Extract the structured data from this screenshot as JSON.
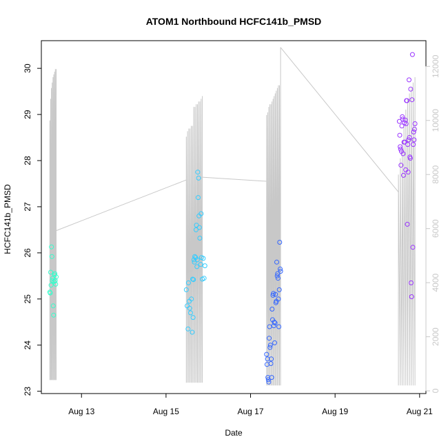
{
  "chart_data": {
    "type": "scatter",
    "title": "ATOM1 Northbound HCFC141b_PMSD",
    "xlabel": "Date",
    "ylabel": "HCFC141b_PMSD",
    "x_ticks": [
      {
        "value": 13,
        "label": "Aug 13"
      },
      {
        "value": 15,
        "label": "Aug 15"
      },
      {
        "value": 17,
        "label": "Aug 17"
      },
      {
        "value": 19,
        "label": "Aug 19"
      },
      {
        "value": 21,
        "label": "Aug 21"
      }
    ],
    "xlim": [
      12.05,
      21.15
    ],
    "ylim": [
      22.95,
      30.6
    ],
    "y_ticks": [
      23,
      24,
      25,
      26,
      27,
      28,
      29,
      30
    ],
    "y2lim": [
      -100,
      12950
    ],
    "y2_ticks": [
      0,
      2000,
      4000,
      6000,
      8000,
      10000,
      12000
    ],
    "colors": {
      "axis": "#000000",
      "secondary_line": "#c8c8c8",
      "secondary_axis": "#c8c8c8"
    },
    "series": [
      {
        "color": "#33ffcc",
        "x": [
          12.25,
          12.26,
          12.27,
          12.28,
          12.29,
          12.3,
          12.31,
          12.32,
          12.33,
          12.34,
          12.35,
          12.36,
          12.37,
          12.38,
          12.39,
          12.4
        ],
        "y": [
          25.15,
          25.13,
          25.58,
          25.3,
          26.13,
          25.92,
          25.4,
          25.45,
          24.85,
          24.65,
          25.38,
          25.52,
          25.55,
          25.4,
          25.32,
          25.48
        ]
      },
      {
        "color": "#33ccff",
        "x": [
          15.48,
          15.5,
          15.52,
          15.53,
          15.55,
          15.56,
          15.58,
          15.6,
          15.62,
          15.63,
          15.64,
          15.65,
          15.66,
          15.67,
          15.68,
          15.7,
          15.71,
          15.72,
          15.73,
          15.74,
          15.75,
          15.76,
          15.77,
          15.78,
          15.79,
          15.8,
          15.82
        ],
        "y": [
          25.2,
          24.85,
          24.35,
          25.35,
          24.95,
          24.8,
          24.7,
          25.0,
          24.28,
          25.43,
          24.6,
          25.42,
          25.85,
          25.8,
          25.92,
          25.9,
          26.5,
          26.6,
          25.7,
          25.85,
          27.75,
          27.2,
          27.62,
          26.8,
          26.55,
          26.32,
          25.75
        ],
        "x_extra": [
          15.83,
          15.84,
          15.86,
          15.88,
          15.9,
          15.92
        ],
        "y_extra": [
          26.85,
          25.9,
          25.43,
          25.88,
          25.45,
          25.72
        ]
      },
      {
        "color": "#3366ff",
        "x": [
          17.38,
          17.39,
          17.4,
          17.41,
          17.42,
          17.43,
          17.44,
          17.45,
          17.46,
          17.47,
          17.48,
          17.49,
          17.5,
          17.51,
          17.52,
          17.53,
          17.54,
          17.55,
          17.56,
          17.57,
          17.58,
          17.59,
          17.6,
          17.61,
          17.62,
          17.63,
          17.64,
          17.65,
          17.66,
          17.67,
          17.68,
          17.69,
          17.7,
          17.71
        ],
        "y": [
          23.8,
          23.58,
          23.7,
          23.3,
          23.25,
          23.2,
          24.15,
          24.4,
          23.95,
          24.0,
          23.6,
          23.7,
          23.3,
          24.78,
          24.55,
          25.08,
          25.12,
          24.42,
          24.5,
          24.05,
          24.48,
          25.1,
          24.92,
          24.95,
          25.8,
          25.5,
          25.55,
          25.45,
          25.0,
          24.4,
          25.2,
          26.23,
          25.65,
          25.6
        ]
      },
      {
        "color": "#9933ff",
        "x": [
          20.52,
          20.53,
          20.54,
          20.55,
          20.56,
          20.57,
          20.58,
          20.59,
          20.6,
          20.61,
          20.62,
          20.63,
          20.64,
          20.65,
          20.66,
          20.67,
          20.68,
          20.69,
          20.7,
          20.71,
          20.72,
          20.73,
          20.74,
          20.75,
          20.76,
          20.77,
          20.78,
          20.79,
          20.8,
          20.81,
          20.82,
          20.83,
          20.84,
          20.85,
          20.86,
          20.87,
          20.88,
          20.89
        ],
        "y": [
          28.85,
          28.55,
          28.3,
          28.25,
          27.9,
          28.2,
          28.75,
          28.95,
          28.9,
          28.15,
          27.68,
          28.4,
          28.82,
          28.4,
          28.88,
          27.8,
          28.8,
          29.3,
          29.3,
          26.62,
          28.35,
          27.75,
          28.45,
          29.75,
          28.5,
          28.08,
          28.05,
          29.55,
          25.35,
          25.05,
          29.32,
          30.3,
          26.12,
          28.35,
          28.62,
          28.45,
          28.68,
          28.8
        ]
      }
    ],
    "secondary_series": {
      "axis": "right",
      "color": "#c8c8c8"
    }
  }
}
